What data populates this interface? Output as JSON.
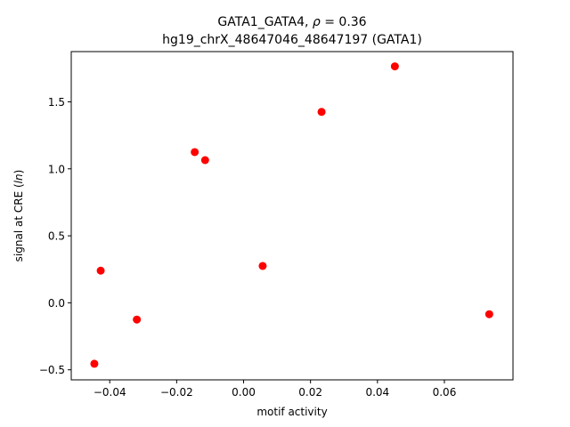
{
  "chart_data": {
    "type": "scatter",
    "title_line1_prefix": "GATA1_GATA4, ",
    "title_line1_rho": "ρ",
    "title_line1_suffix": " = 0.36",
    "title_line2": "hg19_chrX_48647046_48647197 (GATA1)",
    "xlabel": "motif activity",
    "ylabel_prefix": "signal at CRE (",
    "ylabel_italic": "ln",
    "ylabel_suffix": ")",
    "xlim": [
      -0.0515,
      0.0805
    ],
    "ylim": [
      -0.575,
      1.875
    ],
    "xticks": [
      -0.04,
      -0.02,
      0.0,
      0.02,
      0.04,
      0.06
    ],
    "xtick_labels": [
      "−0.04",
      "−0.02",
      "0.00",
      "0.02",
      "0.04",
      "0.06"
    ],
    "yticks": [
      -0.5,
      0.0,
      0.5,
      1.0,
      1.5
    ],
    "ytick_labels": [
      "−0.5",
      "0.0",
      "0.5",
      "1.0",
      "1.5"
    ],
    "grid": false,
    "marker_color": "#ff0000",
    "points": [
      {
        "x": -0.0446,
        "y": -0.455
      },
      {
        "x": -0.0427,
        "y": 0.24
      },
      {
        "x": -0.0319,
        "y": -0.125
      },
      {
        "x": -0.0146,
        "y": 1.125
      },
      {
        "x": -0.0115,
        "y": 1.065
      },
      {
        "x": 0.0057,
        "y": 0.275
      },
      {
        "x": 0.0233,
        "y": 1.425
      },
      {
        "x": 0.0452,
        "y": 1.765
      },
      {
        "x": 0.0734,
        "y": -0.085
      }
    ]
  }
}
